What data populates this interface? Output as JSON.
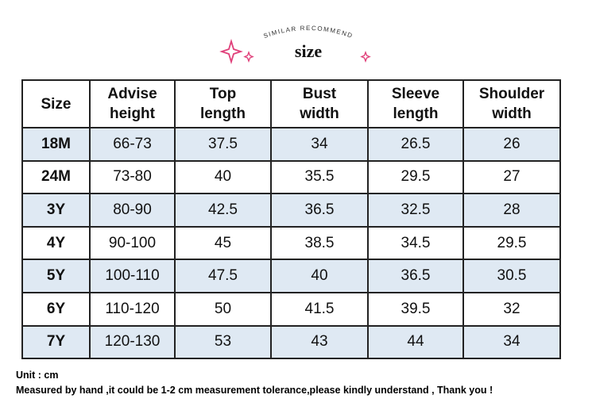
{
  "header": {
    "arc_text": "SIMILAR RECOMMEND",
    "title": "size"
  },
  "table": {
    "columns": [
      [
        "Size"
      ],
      [
        "Advise",
        "height"
      ],
      [
        "Top",
        "length"
      ],
      [
        "Bust",
        "width"
      ],
      [
        "Sleeve",
        "length"
      ],
      [
        "Shoulder",
        "width"
      ]
    ],
    "rows": [
      [
        "18M",
        "66-73",
        "37.5",
        "34",
        "26.5",
        "26"
      ],
      [
        "24M",
        "73-80",
        "40",
        "35.5",
        "29.5",
        "27"
      ],
      [
        "3Y",
        "80-90",
        "42.5",
        "36.5",
        "32.5",
        "28"
      ],
      [
        "4Y",
        "90-100",
        "45",
        "38.5",
        "34.5",
        "29.5"
      ],
      [
        "5Y",
        "100-110",
        "47.5",
        "40",
        "36.5",
        "30.5"
      ],
      [
        "6Y",
        "110-120",
        "50",
        "41.5",
        "39.5",
        "32"
      ],
      [
        "7Y",
        "120-130",
        "53",
        "43",
        "44",
        "34"
      ]
    ]
  },
  "footer": {
    "unit": "Unit : cm",
    "note": "Measured by hand ,it could be 1-2 cm measurement tolerance,please kindly understand , Thank you !"
  }
}
